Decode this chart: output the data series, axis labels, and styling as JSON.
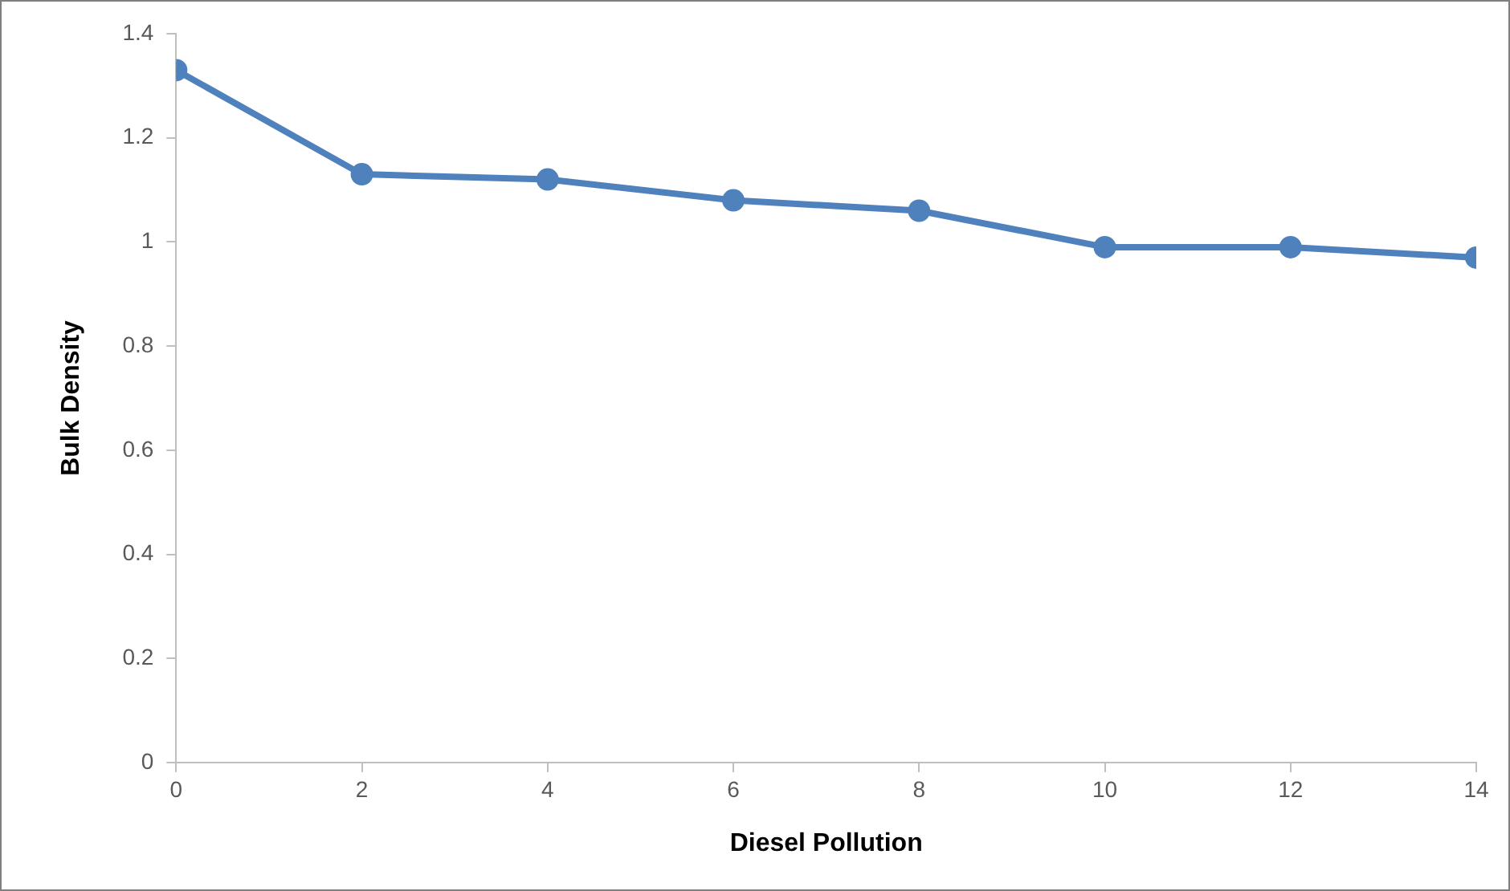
{
  "chart_data": {
    "type": "line",
    "xlabel": "Diesel Pollution",
    "ylabel": "Bulk Density",
    "x": [
      0,
      2,
      4,
      6,
      8,
      10,
      12,
      14
    ],
    "series": [
      {
        "color": "#4f81bd",
        "values": [
          1.33,
          1.13,
          1.12,
          1.08,
          1.06,
          0.99,
          0.99,
          0.97
        ]
      }
    ],
    "xlim": [
      0,
      14
    ],
    "xticks": [
      0,
      2,
      4,
      6,
      8,
      10,
      12,
      14
    ],
    "ylim": [
      0,
      1.4
    ],
    "yticks": [
      0,
      0.2,
      0.4,
      0.6,
      0.8,
      1,
      1.2,
      1.4
    ],
    "grid": false,
    "legend": false,
    "marker": "circle",
    "line_style": "solid"
  }
}
